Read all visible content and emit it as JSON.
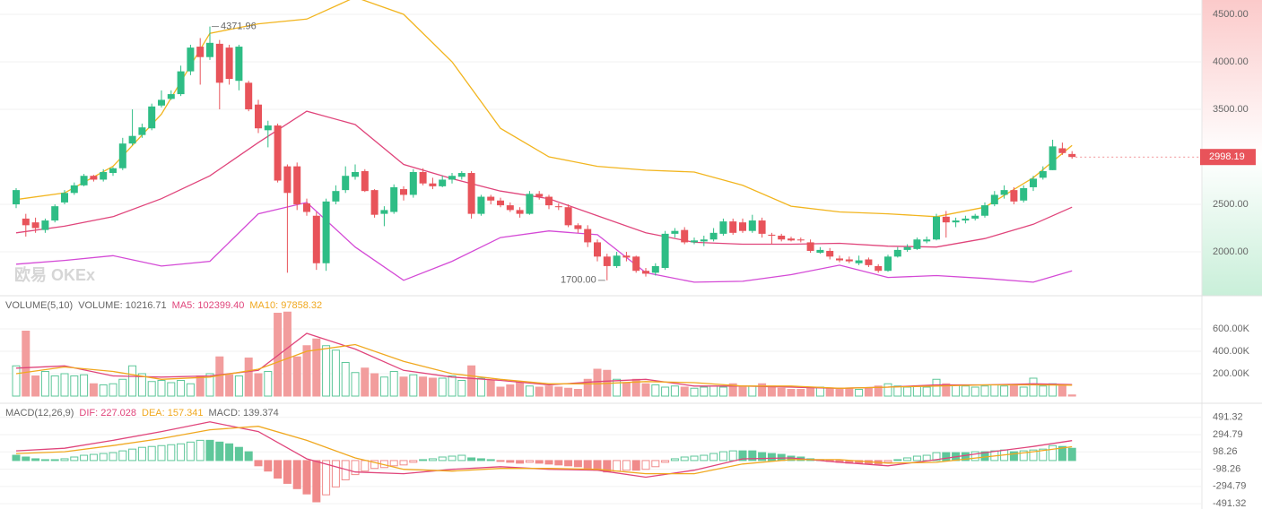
{
  "chart_data": [
    {
      "type": "candlestick",
      "watermark": "欧易 OKEx",
      "up_color": "#2ebd85",
      "down_color": "#e8535a",
      "grid": true,
      "ylim": [
        1538,
        4651
      ],
      "yticks": [
        {
          "value": 2000,
          "label": "2000.00"
        },
        {
          "value": 2500,
          "label": "2500.00"
        },
        {
          "value": 3500,
          "label": "3500.00"
        },
        {
          "value": 4000,
          "label": "4000.00"
        },
        {
          "value": 4500,
          "label": "4500.00"
        }
      ],
      "open": [
        2500,
        2350,
        2310,
        2230,
        2330,
        2520,
        2620,
        2700,
        2800,
        2760,
        2830,
        2880,
        3140,
        3230,
        3300,
        3540,
        3610,
        3660,
        3900,
        4160,
        4050,
        4190,
        4150,
        3800,
        3780,
        3550,
        3280,
        3330,
        2900,
        2900,
        2510,
        2380,
        1880,
        2530,
        2650,
        2790,
        2850,
        2650,
        2400,
        2420,
        2660,
        2600,
        2840,
        2720,
        2690,
        2760,
        2790,
        2830,
        2400,
        2580,
        2540,
        2490,
        2440,
        2400,
        2610,
        2580,
        2480,
        2470,
        2280,
        2240,
        2100,
        1950,
        1850,
        1960,
        1950,
        1800,
        1780,
        1830,
        2190,
        2230,
        2100,
        2110,
        2130,
        2190,
        2320,
        2310,
        2220,
        2330,
        2180,
        2170,
        2140,
        2130,
        2100,
        1990,
        2010,
        1930,
        1920,
        1880,
        1920,
        1850,
        1800,
        1950,
        2020,
        2030,
        2110,
        2130,
        2370,
        2310,
        2330,
        2350,
        2380,
        2500,
        2600,
        2650,
        2540,
        2680,
        2780,
        2860,
        3090,
        3030
      ],
      "high": [
        2670,
        2400,
        2360,
        2350,
        2500,
        2650,
        2730,
        2820,
        2810,
        2870,
        2890,
        3200,
        3500,
        3350,
        3560,
        3700,
        3700,
        3960,
        4180,
        4250,
        4371.96,
        4230,
        4180,
        4180,
        3800,
        3600,
        3380,
        3350,
        2920,
        2940,
        2560,
        2420,
        2560,
        2700,
        2900,
        2920,
        2870,
        2660,
        2480,
        2710,
        2690,
        2870,
        2880,
        2780,
        2800,
        2830,
        2850,
        2850,
        2600,
        2600,
        2570,
        2520,
        2470,
        2640,
        2640,
        2600,
        2510,
        2500,
        2300,
        2280,
        2130,
        1980,
        2000,
        2000,
        1960,
        1830,
        1880,
        2220,
        2250,
        2260,
        2150,
        2170,
        2250,
        2350,
        2350,
        2350,
        2390,
        2360,
        2200,
        2190,
        2160,
        2150,
        2130,
        2050,
        2040,
        1960,
        1950,
        1960,
        1940,
        1870,
        1970,
        2050,
        2080,
        2150,
        2160,
        2400,
        2430,
        2360,
        2380,
        2400,
        2520,
        2640,
        2700,
        2680,
        2700,
        2800,
        2900,
        3180,
        3150,
        3060
      ],
      "low": [
        2460,
        2160,
        2200,
        2200,
        2310,
        2500,
        2600,
        2690,
        2740,
        2740,
        2800,
        2860,
        3120,
        3200,
        3280,
        3520,
        3600,
        3640,
        3860,
        3760,
        4020,
        3500,
        3760,
        3700,
        3480,
        3250,
        3100,
        2730,
        1780,
        2440,
        2380,
        1810,
        1800,
        2500,
        2620,
        2760,
        2630,
        2360,
        2270,
        2400,
        2540,
        2570,
        2700,
        2660,
        2680,
        2720,
        2760,
        2350,
        2380,
        2500,
        2470,
        2420,
        2360,
        2390,
        2550,
        2450,
        2440,
        2260,
        2200,
        2050,
        1900,
        1700,
        1830,
        1900,
        1780,
        1740,
        1750,
        1810,
        2150,
        2080,
        2080,
        2060,
        2110,
        2170,
        2180,
        2200,
        2200,
        2150,
        2080,
        2110,
        2110,
        2100,
        1990,
        1980,
        1920,
        1890,
        1880,
        1860,
        1840,
        1780,
        1790,
        1940,
        2000,
        2020,
        2090,
        2120,
        2150,
        2260,
        2300,
        2330,
        2360,
        2480,
        2560,
        2500,
        2520,
        2640,
        2760,
        2860,
        3020,
        2980
      ],
      "close": [
        2650,
        2280,
        2250,
        2330,
        2480,
        2620,
        2700,
        2800,
        2760,
        2840,
        2880,
        3140,
        3220,
        3310,
        3530,
        3600,
        3660,
        3900,
        4150,
        4050,
        4200,
        3780,
        3820,
        4160,
        3500,
        3300,
        3330,
        2750,
        2620,
        2500,
        2420,
        1880,
        2530,
        2640,
        2800,
        2840,
        2640,
        2390,
        2440,
        2680,
        2600,
        2840,
        2720,
        2690,
        2760,
        2800,
        2830,
        2400,
        2580,
        2540,
        2490,
        2440,
        2400,
        2610,
        2580,
        2490,
        2470,
        2280,
        2240,
        2100,
        1950,
        1850,
        1960,
        1940,
        1800,
        1770,
        1850,
        2190,
        2220,
        2100,
        2120,
        2130,
        2200,
        2320,
        2200,
        2220,
        2330,
        2190,
        2170,
        2130,
        2120,
        2120,
        2010,
        2020,
        1950,
        1910,
        1900,
        1910,
        1860,
        1800,
        1950,
        2020,
        2050,
        2130,
        2130,
        2370,
        2310,
        2330,
        2350,
        2380,
        2490,
        2600,
        2650,
        2530,
        2670,
        2770,
        2850,
        3110,
        3040,
        2998.19
      ],
      "lines": [
        {
          "color": "#f2b51f",
          "x": [
            0,
            5,
            10,
            15,
            20,
            25,
            30,
            35,
            40,
            45,
            50,
            55,
            60,
            65,
            70,
            75,
            80,
            85,
            90,
            95,
            100,
            105,
            109
          ],
          "values": [
            2550,
            2620,
            2900,
            3450,
            4300,
            4400,
            4450,
            4680,
            4500,
            4000,
            3300,
            3000,
            2900,
            2860,
            2840,
            2700,
            2480,
            2420,
            2400,
            2370,
            2470,
            2780,
            3120
          ]
        },
        {
          "color": "#e0457b",
          "x": [
            0,
            5,
            10,
            15,
            20,
            25,
            30,
            35,
            40,
            45,
            50,
            55,
            60,
            65,
            70,
            75,
            80,
            85,
            90,
            95,
            100,
            105,
            109
          ],
          "values": [
            2200,
            2270,
            2370,
            2560,
            2800,
            3150,
            3480,
            3340,
            2920,
            2770,
            2640,
            2560,
            2380,
            2200,
            2100,
            2080,
            2080,
            2090,
            2060,
            2050,
            2140,
            2290,
            2470
          ]
        },
        {
          "color": "#d44ad6",
          "x": [
            0,
            5,
            10,
            15,
            20,
            25,
            30,
            35,
            40,
            45,
            50,
            55,
            60,
            65,
            70,
            75,
            80,
            85,
            90,
            95,
            100,
            105,
            109
          ],
          "values": [
            1870,
            1910,
            1960,
            1850,
            1900,
            2400,
            2520,
            2050,
            1700,
            1900,
            2150,
            2220,
            2180,
            1780,
            1680,
            1690,
            1760,
            1860,
            1730,
            1750,
            1720,
            1680,
            1800
          ]
        }
      ],
      "annotations": [
        {
          "x": 20,
          "anchor": "high",
          "label": "4371.96"
        },
        {
          "x": 61,
          "anchor": "low",
          "label": "1700.00"
        }
      ],
      "last_price": {
        "label": "2998.19",
        "color": "#e8535a"
      }
    },
    {
      "type": "volume",
      "up_color": "#5ec79a",
      "down_color": "#f29d9d",
      "grid": true,
      "header": [
        {
          "text": "VOLUME(5,10)",
          "color": "#666666"
        },
        {
          "text": "VOLUME: 10216.71",
          "color": "#666666"
        },
        {
          "text": "MA5: 102399.40",
          "color": "#e0457b"
        },
        {
          "text": "MA10: 97858.32",
          "color": "#f0a81f"
        }
      ],
      "ylim": [
        -64000,
        896000
      ],
      "yticks": [
        {
          "value": 200000,
          "label": "200.00K"
        },
        {
          "value": 400000,
          "label": "400.00K"
        },
        {
          "value": 600000,
          "label": "600.00K"
        }
      ],
      "values": [
        270000,
        580000,
        180000,
        220000,
        180000,
        200000,
        180000,
        190000,
        110000,
        100000,
        110000,
        150000,
        270000,
        200000,
        130000,
        140000,
        120000,
        140000,
        110000,
        180000,
        200000,
        350000,
        190000,
        180000,
        340000,
        200000,
        220000,
        740000,
        750000,
        350000,
        450000,
        510000,
        450000,
        410000,
        300000,
        210000,
        250000,
        200000,
        170000,
        220000,
        170000,
        190000,
        170000,
        160000,
        160000,
        180000,
        140000,
        270000,
        160000,
        140000,
        80000,
        100000,
        120000,
        90000,
        80000,
        90000,
        80000,
        70000,
        60000,
        150000,
        240000,
        230000,
        150000,
        120000,
        150000,
        110000,
        100000,
        80000,
        90000,
        80000,
        70000,
        80000,
        90000,
        80000,
        110000,
        90000,
        90000,
        110000,
        90000,
        70000,
        60000,
        60000,
        70000,
        80000,
        70000,
        60000,
        70000,
        60000,
        70000,
        90000,
        110000,
        90000,
        80000,
        90000,
        80000,
        150000,
        110000,
        100000,
        90000,
        80000,
        90000,
        100000,
        90000,
        100000,
        80000,
        160000,
        90000,
        110000,
        100000,
        10216.71
      ],
      "lines": [
        {
          "color": "#e0457b",
          "x": [
            0,
            5,
            10,
            15,
            20,
            25,
            30,
            35,
            40,
            45,
            50,
            55,
            60,
            65,
            70,
            75,
            80,
            85,
            90,
            95,
            100,
            105,
            109
          ],
          "values": [
            250000,
            270000,
            180000,
            170000,
            180000,
            230000,
            560000,
            420000,
            230000,
            170000,
            140000,
            100000,
            130000,
            150000,
            90000,
            90000,
            80000,
            70000,
            80000,
            100000,
            100000,
            110000,
            102399.4
          ]
        },
        {
          "color": "#f0a81f",
          "x": [
            0,
            5,
            10,
            15,
            20,
            25,
            30,
            35,
            40,
            45,
            50,
            55,
            60,
            65,
            70,
            75,
            80,
            85,
            90,
            95,
            100,
            105,
            109
          ],
          "values": [
            200000,
            260000,
            220000,
            150000,
            170000,
            240000,
            400000,
            460000,
            310000,
            200000,
            150000,
            110000,
            110000,
            130000,
            120000,
            90000,
            90000,
            70000,
            80000,
            90000,
            100000,
            100000,
            97858.32
          ]
        }
      ]
    },
    {
      "type": "macd",
      "up_color": "#5ec79a",
      "down_color": "#f08a8a",
      "grid": true,
      "header": [
        {
          "text": "MACD(12,26,9)",
          "color": "#666666"
        },
        {
          "text": "DIF: 227.028",
          "color": "#e0457b"
        },
        {
          "text": "DEA: 157.341",
          "color": "#f0a81f"
        },
        {
          "text": "MACD: 139.374",
          "color": "#666666"
        }
      ],
      "ylim": [
        -551.5,
        651.8
      ],
      "yticks": [
        -491.32,
        -294.79,
        -98.26,
        98.26,
        294.79,
        491.32
      ],
      "values": [
        60,
        40,
        20,
        10,
        10,
        20,
        40,
        60,
        70,
        80,
        90,
        110,
        130,
        150,
        160,
        170,
        180,
        190,
        210,
        230,
        230,
        210,
        190,
        150,
        100,
        -60,
        -120,
        -200,
        -260,
        -320,
        -380,
        -470,
        -390,
        -300,
        -220,
        -160,
        -120,
        -90,
        -80,
        -60,
        -50,
        -20,
        10,
        20,
        40,
        50,
        60,
        30,
        20,
        10,
        -10,
        -20,
        -30,
        -20,
        -30,
        -40,
        -50,
        -60,
        -70,
        -90,
        -110,
        -130,
        -120,
        -110,
        -110,
        -100,
        -70,
        -20,
        20,
        40,
        50,
        60,
        80,
        100,
        110,
        110,
        110,
        90,
        80,
        70,
        50,
        40,
        20,
        10,
        -10,
        -20,
        -30,
        -30,
        -40,
        -40,
        -20,
        10,
        30,
        50,
        60,
        90,
        90,
        90,
        90,
        100,
        100,
        110,
        120,
        100,
        110,
        120,
        130,
        170,
        160,
        139.374
      ],
      "lines": [
        {
          "color": "#e0457b",
          "x": [
            0,
            5,
            10,
            15,
            20,
            25,
            30,
            35,
            40,
            45,
            50,
            55,
            60,
            65,
            70,
            75,
            80,
            85,
            90,
            95,
            100,
            105,
            109
          ],
          "values": [
            110,
            140,
            230,
            330,
            440,
            330,
            20,
            -130,
            -150,
            -100,
            -70,
            -100,
            -110,
            -190,
            -110,
            20,
            30,
            -20,
            -60,
            10,
            90,
            160,
            227.028
          ]
        },
        {
          "color": "#f0a81f",
          "x": [
            0,
            5,
            10,
            15,
            20,
            25,
            30,
            35,
            40,
            45,
            50,
            55,
            60,
            65,
            70,
            75,
            80,
            85,
            90,
            95,
            100,
            105,
            109
          ],
          "values": [
            80,
            100,
            170,
            250,
            350,
            390,
            230,
            30,
            -100,
            -120,
            -90,
            -90,
            -100,
            -150,
            -150,
            -40,
            10,
            10,
            -30,
            -20,
            40,
            100,
            157.341
          ]
        }
      ]
    }
  ]
}
